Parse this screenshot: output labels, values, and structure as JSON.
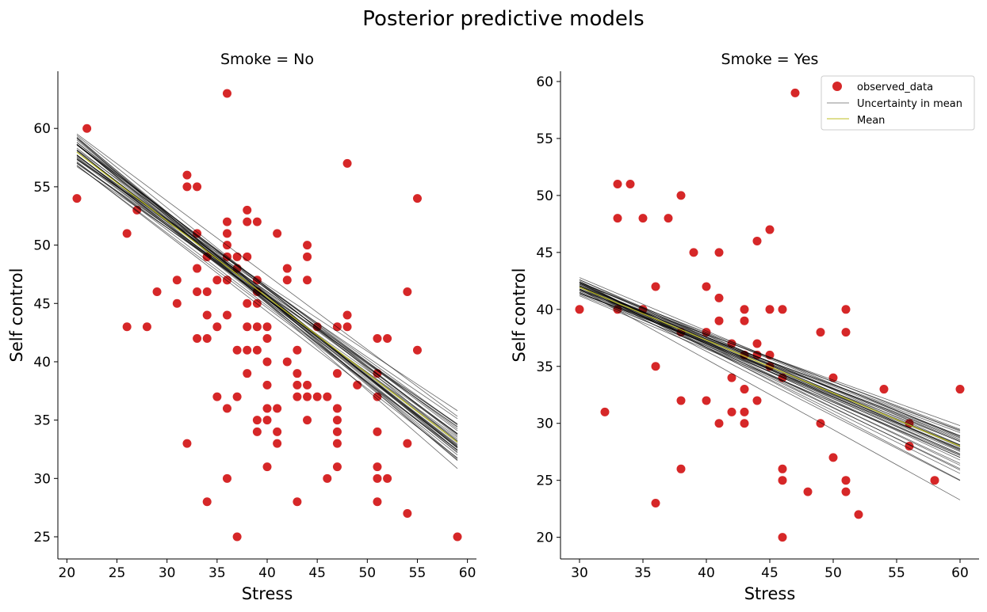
{
  "figure": {
    "title": "Posterior predictive models"
  },
  "legend": {
    "observed": "observed_data",
    "uncertainty": "Uncertainty in mean",
    "mean": "Mean"
  },
  "colors": {
    "points": "#d62728",
    "uncertainty_lines": "#000000",
    "mean_line": "#bcbd22"
  },
  "chart_data": [
    {
      "type": "scatter",
      "title": "Smoke = No",
      "xlabel": "Stress",
      "ylabel": "Self control",
      "xlim": [
        19.1,
        60.9
      ],
      "ylim": [
        23.1,
        64.9
      ],
      "xticks": [
        20,
        25,
        30,
        35,
        40,
        45,
        50,
        55,
        60
      ],
      "yticks": [
        25,
        30,
        35,
        40,
        45,
        50,
        55,
        60
      ],
      "grid": false,
      "points": [
        [
          21,
          54
        ],
        [
          22,
          60
        ],
        [
          26,
          51
        ],
        [
          26,
          43
        ],
        [
          27,
          53
        ],
        [
          28,
          43
        ],
        [
          29,
          46
        ],
        [
          31,
          47
        ],
        [
          31,
          45
        ],
        [
          32,
          56
        ],
        [
          32,
          55
        ],
        [
          32,
          33
        ],
        [
          33,
          55
        ],
        [
          33,
          51
        ],
        [
          33,
          48
        ],
        [
          33,
          46
        ],
        [
          33,
          42
        ],
        [
          34,
          49
        ],
        [
          34,
          49
        ],
        [
          34,
          46
        ],
        [
          34,
          44
        ],
        [
          34,
          42
        ],
        [
          34,
          28
        ],
        [
          35,
          47
        ],
        [
          35,
          43
        ],
        [
          35,
          37
        ],
        [
          36,
          63
        ],
        [
          36,
          52
        ],
        [
          36,
          51
        ],
        [
          36,
          50
        ],
        [
          36,
          49
        ],
        [
          36,
          47
        ],
        [
          36,
          47
        ],
        [
          36,
          44
        ],
        [
          36,
          36
        ],
        [
          36,
          30
        ],
        [
          37,
          49
        ],
        [
          37,
          48
        ],
        [
          37,
          41
        ],
        [
          37,
          37
        ],
        [
          37,
          25
        ],
        [
          38,
          53
        ],
        [
          38,
          52
        ],
        [
          38,
          49
        ],
        [
          38,
          45
        ],
        [
          38,
          43
        ],
        [
          38,
          41
        ],
        [
          38,
          39
        ],
        [
          39,
          52
        ],
        [
          39,
          47
        ],
        [
          39,
          46
        ],
        [
          39,
          45
        ],
        [
          39,
          43
        ],
        [
          39,
          41
        ],
        [
          39,
          35
        ],
        [
          39,
          34
        ],
        [
          40,
          43
        ],
        [
          40,
          42
        ],
        [
          40,
          40
        ],
        [
          40,
          38
        ],
        [
          40,
          36
        ],
        [
          40,
          35
        ],
        [
          40,
          31
        ],
        [
          41,
          51
        ],
        [
          41,
          36
        ],
        [
          41,
          34
        ],
        [
          41,
          33
        ],
        [
          42,
          48
        ],
        [
          42,
          47
        ],
        [
          42,
          40
        ],
        [
          43,
          41
        ],
        [
          43,
          39
        ],
        [
          43,
          38
        ],
        [
          43,
          37
        ],
        [
          43,
          28
        ],
        [
          44,
          50
        ],
        [
          44,
          49
        ],
        [
          44,
          47
        ],
        [
          44,
          38
        ],
        [
          44,
          37
        ],
        [
          44,
          35
        ],
        [
          45,
          43
        ],
        [
          45,
          37
        ],
        [
          46,
          37
        ],
        [
          46,
          30
        ],
        [
          47,
          43
        ],
        [
          47,
          39
        ],
        [
          47,
          36
        ],
        [
          47,
          35
        ],
        [
          47,
          34
        ],
        [
          47,
          33
        ],
        [
          47,
          31
        ],
        [
          48,
          57
        ],
        [
          48,
          44
        ],
        [
          48,
          43
        ],
        [
          49,
          38
        ],
        [
          51,
          42
        ],
        [
          51,
          39
        ],
        [
          51,
          37
        ],
        [
          51,
          34
        ],
        [
          51,
          31
        ],
        [
          51,
          30
        ],
        [
          51,
          28
        ],
        [
          52,
          42
        ],
        [
          52,
          30
        ],
        [
          54,
          46
        ],
        [
          54,
          33
        ],
        [
          54,
          27
        ],
        [
          55,
          54
        ],
        [
          55,
          41
        ],
        [
          59,
          25
        ]
      ],
      "line_x_range": [
        21,
        59
      ],
      "mean_line": {
        "intercept": 71.7,
        "slope": -0.654
      },
      "uncertainty_lines": [
        {
          "intercept": 72.9,
          "slope": -0.637
        },
        {
          "intercept": 70.6,
          "slope": -0.631
        },
        {
          "intercept": 74.6,
          "slope": -0.73
        },
        {
          "intercept": 68.9,
          "slope": -0.58
        },
        {
          "intercept": 73.3,
          "slope": -0.69
        },
        {
          "intercept": 70.1,
          "slope": -0.62
        },
        {
          "intercept": 72.1,
          "slope": -0.667
        },
        {
          "intercept": 71.0,
          "slope": -0.64
        },
        {
          "intercept": 69.5,
          "slope": -0.594
        },
        {
          "intercept": 74.0,
          "slope": -0.705
        },
        {
          "intercept": 72.5,
          "slope": -0.675
        },
        {
          "intercept": 70.8,
          "slope": -0.65
        },
        {
          "intercept": 71.9,
          "slope": -0.658
        },
        {
          "intercept": 73.7,
          "slope": -0.7
        },
        {
          "intercept": 69.8,
          "slope": -0.61
        },
        {
          "intercept": 72.7,
          "slope": -0.662
        },
        {
          "intercept": 71.3,
          "slope": -0.635
        },
        {
          "intercept": 70.3,
          "slope": -0.642
        },
        {
          "intercept": 73.0,
          "slope": -0.684
        },
        {
          "intercept": 71.6,
          "slope": -0.66
        },
        {
          "intercept": 69.2,
          "slope": -0.566
        },
        {
          "intercept": 74.3,
          "slope": -0.722
        },
        {
          "intercept": 72.2,
          "slope": -0.646
        },
        {
          "intercept": 70.9,
          "slope": -0.628
        },
        {
          "intercept": 72.9,
          "slope": -0.68
        },
        {
          "intercept": 71.1,
          "slope": -0.648
        },
        {
          "intercept": 73.6,
          "slope": -0.712
        },
        {
          "intercept": 70.5,
          "slope": -0.612
        },
        {
          "intercept": 71.8,
          "slope": -0.67
        },
        {
          "intercept": 72.4,
          "slope": -0.655
        },
        {
          "intercept": 70.0,
          "slope": -0.6
        },
        {
          "intercept": 73.2,
          "slope": -0.695
        },
        {
          "intercept": 71.4,
          "slope": -0.652
        },
        {
          "intercept": 72.0,
          "slope": -0.64
        },
        {
          "intercept": 70.7,
          "slope": -0.66
        },
        {
          "intercept": 73.9,
          "slope": -0.69
        },
        {
          "intercept": 71.2,
          "slope": -0.62
        },
        {
          "intercept": 72.6,
          "slope": -0.688
        },
        {
          "intercept": 69.7,
          "slope": -0.586
        },
        {
          "intercept": 74.8,
          "slope": -0.745
        }
      ]
    },
    {
      "type": "scatter",
      "title": "Smoke = Yes",
      "xlabel": "Stress",
      "ylabel": "Self control",
      "xlim": [
        28.5,
        61.5
      ],
      "ylim": [
        18.1,
        60.9
      ],
      "xticks": [
        30,
        35,
        40,
        45,
        50,
        55,
        60
      ],
      "yticks": [
        20,
        25,
        30,
        35,
        40,
        45,
        50,
        55,
        60
      ],
      "grid": false,
      "legend_position": "top-right",
      "points": [
        [
          30,
          40
        ],
        [
          32,
          31
        ],
        [
          33,
          51
        ],
        [
          33,
          48
        ],
        [
          33,
          40
        ],
        [
          34,
          51
        ],
        [
          35,
          48
        ],
        [
          35,
          40
        ],
        [
          36,
          42
        ],
        [
          36,
          35
        ],
        [
          36,
          23
        ],
        [
          37,
          48
        ],
        [
          38,
          50
        ],
        [
          38,
          38
        ],
        [
          38,
          32
        ],
        [
          38,
          26
        ],
        [
          39,
          45
        ],
        [
          40,
          42
        ],
        [
          40,
          38
        ],
        [
          40,
          32
        ],
        [
          41,
          45
        ],
        [
          41,
          41
        ],
        [
          41,
          39
        ],
        [
          41,
          30
        ],
        [
          42,
          37
        ],
        [
          42,
          34
        ],
        [
          42,
          31
        ],
        [
          43,
          40
        ],
        [
          43,
          39
        ],
        [
          43,
          36
        ],
        [
          43,
          33
        ],
        [
          43,
          31
        ],
        [
          43,
          30
        ],
        [
          44,
          46
        ],
        [
          44,
          37
        ],
        [
          44,
          36
        ],
        [
          44,
          32
        ],
        [
          45,
          47
        ],
        [
          45,
          40
        ],
        [
          45,
          36
        ],
        [
          45,
          35
        ],
        [
          46,
          40
        ],
        [
          46,
          34
        ],
        [
          46,
          26
        ],
        [
          46,
          25
        ],
        [
          46,
          20
        ],
        [
          47,
          59
        ],
        [
          48,
          24
        ],
        [
          49,
          38
        ],
        [
          49,
          30
        ],
        [
          50,
          34
        ],
        [
          50,
          27
        ],
        [
          51,
          40
        ],
        [
          51,
          38
        ],
        [
          51,
          25
        ],
        [
          51,
          24
        ],
        [
          52,
          22
        ],
        [
          54,
          33
        ],
        [
          56,
          30
        ],
        [
          56,
          28
        ],
        [
          58,
          25
        ],
        [
          60,
          33
        ]
      ],
      "line_x_range": [
        30,
        60
      ],
      "mean_line": {
        "intercept": 55.9,
        "slope": -0.465
      },
      "uncertainty_lines": [
        {
          "intercept": 57.3,
          "slope": -0.5
        },
        {
          "intercept": 53.8,
          "slope": -0.4
        },
        {
          "intercept": 60.0,
          "slope": -0.583
        },
        {
          "intercept": 54.9,
          "slope": -0.433
        },
        {
          "intercept": 56.4,
          "slope": -0.467
        },
        {
          "intercept": 55.0,
          "slope": -0.45
        },
        {
          "intercept": 58.3,
          "slope": -0.533
        },
        {
          "intercept": 53.4,
          "slope": -0.4
        },
        {
          "intercept": 57.0,
          "slope": -0.5
        },
        {
          "intercept": 55.5,
          "slope": -0.45
        },
        {
          "intercept": 56.0,
          "slope": -0.483
        },
        {
          "intercept": 54.5,
          "slope": -0.417
        },
        {
          "intercept": 57.8,
          "slope": -0.517
        },
        {
          "intercept": 56.8,
          "slope": -0.467
        },
        {
          "intercept": 54.7,
          "slope": -0.433
        },
        {
          "intercept": 55.9,
          "slope": -0.45
        },
        {
          "intercept": 58.9,
          "slope": -0.55
        },
        {
          "intercept": 55.2,
          "slope": -0.467
        },
        {
          "intercept": 56.5,
          "slope": -0.483
        },
        {
          "intercept": 54.2,
          "slope": -0.417
        },
        {
          "intercept": 57.5,
          "slope": -0.517
        },
        {
          "intercept": 55.8,
          "slope": -0.467
        },
        {
          "intercept": 59.0,
          "slope": -0.567
        },
        {
          "intercept": 56.1,
          "slope": -0.467
        },
        {
          "intercept": 55.3,
          "slope": -0.433
        },
        {
          "intercept": 58.0,
          "slope": -0.533
        },
        {
          "intercept": 56.7,
          "slope": -0.483
        },
        {
          "intercept": 54.4,
          "slope": -0.433
        },
        {
          "intercept": 57.2,
          "slope": -0.5
        },
        {
          "intercept": 55.6,
          "slope": -0.45
        },
        {
          "intercept": 53.9,
          "slope": -0.417
        },
        {
          "intercept": 60.3,
          "slope": -0.617
        },
        {
          "intercept": 56.3,
          "slope": -0.483
        },
        {
          "intercept": 57.6,
          "slope": -0.5
        },
        {
          "intercept": 55.1,
          "slope": -0.45
        },
        {
          "intercept": 56.9,
          "slope": -0.483
        },
        {
          "intercept": 54.8,
          "slope": -0.45
        },
        {
          "intercept": 58.6,
          "slope": -0.55
        },
        {
          "intercept": 55.7,
          "slope": -0.467
        },
        {
          "intercept": 57.1,
          "slope": -0.483
        }
      ]
    }
  ]
}
